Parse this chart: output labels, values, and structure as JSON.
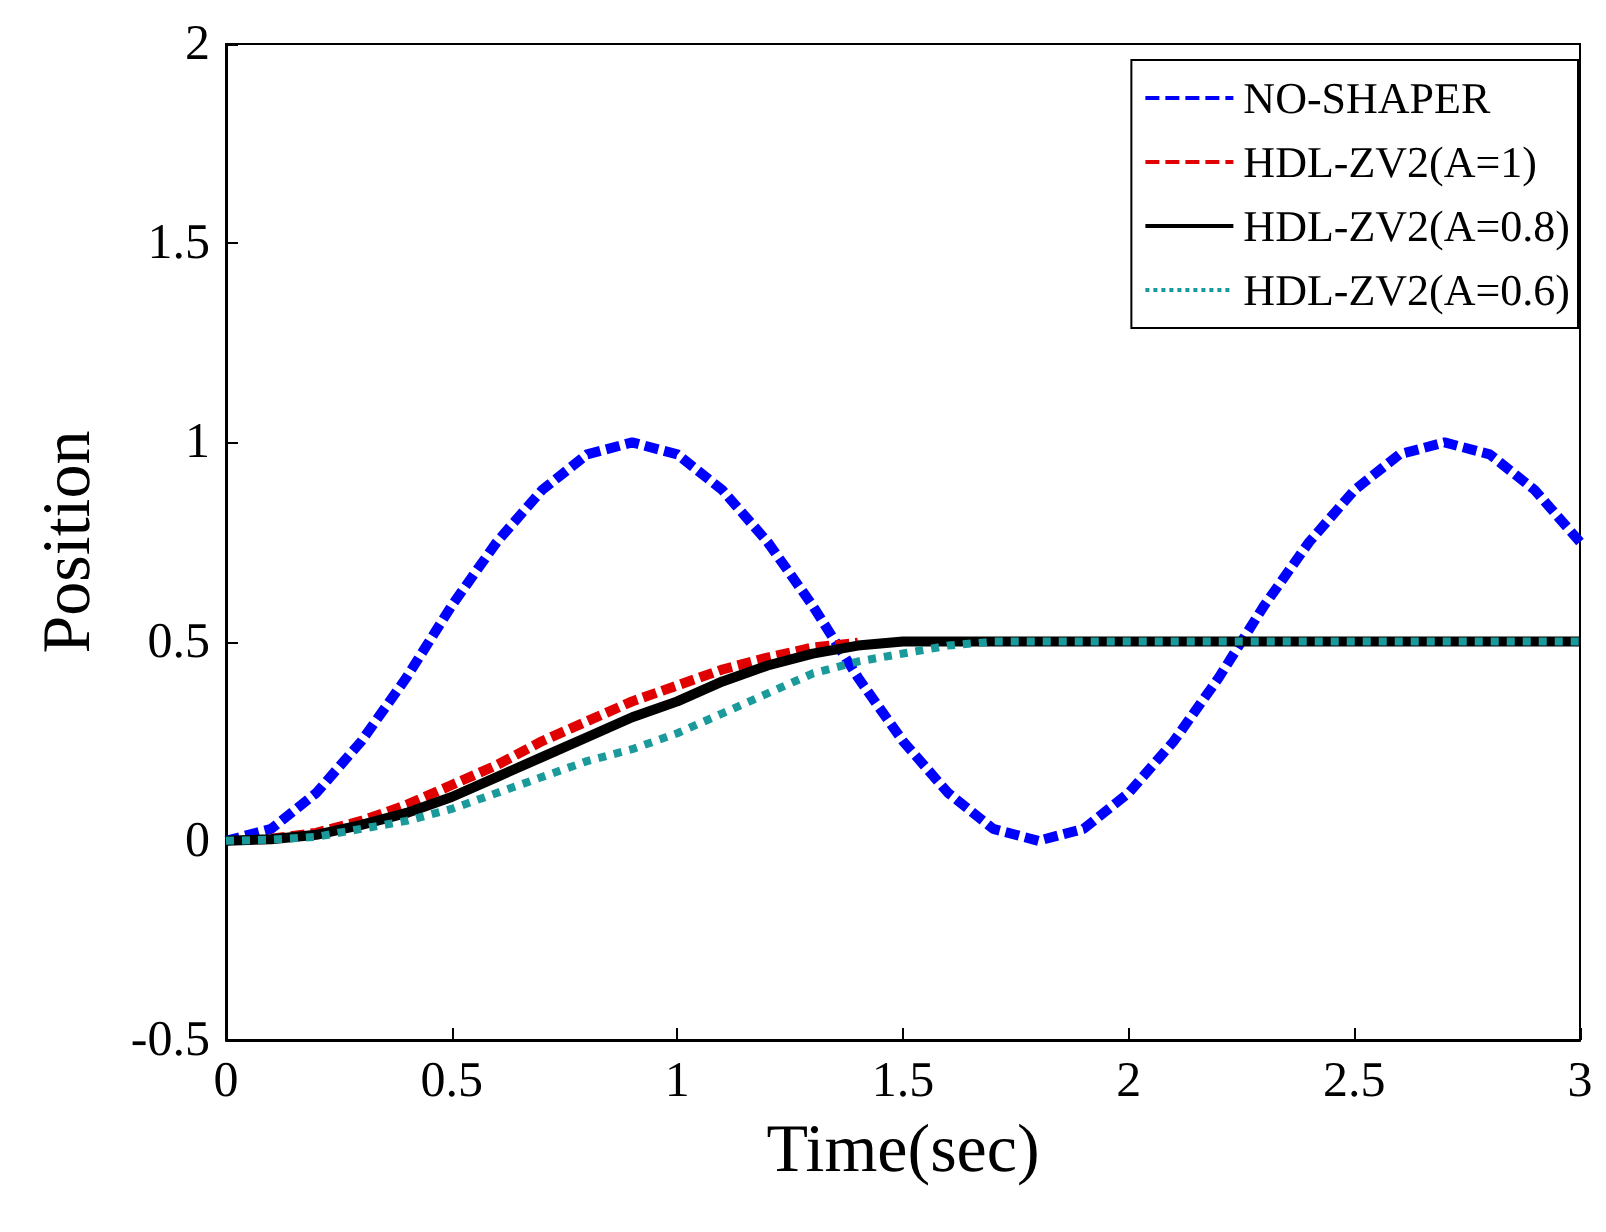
{
  "chart_data": {
    "type": "line",
    "xlabel": "Time(sec)",
    "ylabel": "Position",
    "x": [
      0,
      0.1,
      0.2,
      0.3,
      0.4,
      0.5,
      0.6,
      0.7,
      0.8,
      0.9,
      1,
      1.1,
      1.2,
      1.3,
      1.4,
      1.5,
      1.6,
      1.7,
      1.8,
      1.9,
      2,
      2.1,
      2.2,
      2.3,
      2.4,
      2.5,
      2.6,
      2.7,
      2.8,
      2.9,
      3
    ],
    "series": [
      {
        "name": "NO-SHAPER",
        "color": "#0000ff",
        "line_style": "dashed",
        "values": [
          0,
          0.03,
          0.12,
          0.25,
          0.41,
          0.59,
          0.75,
          0.88,
          0.97,
          1,
          0.97,
          0.88,
          0.75,
          0.59,
          0.41,
          0.25,
          0.12,
          0.03,
          0,
          0.03,
          0.12,
          0.25,
          0.41,
          0.59,
          0.75,
          0.88,
          0.97,
          1,
          0.97,
          0.88,
          0.75
        ]
      },
      {
        "name": "HDL-ZV2(A=1)",
        "color": "#e00000",
        "line_style": "dashed",
        "values": [
          null,
          0.005,
          0.02,
          0.05,
          0.09,
          0.14,
          0.19,
          0.25,
          0.3,
          0.35,
          0.39,
          0.43,
          0.46,
          0.485,
          0.497,
          null,
          null,
          null,
          null,
          null,
          null,
          null,
          null,
          null,
          null,
          null,
          null,
          null,
          null,
          null,
          null
        ]
      },
      {
        "name": "HDL-ZV2(A=0.8)",
        "color": "#000000",
        "line_style": "solid",
        "values": [
          0,
          0.004,
          0.015,
          0.04,
          0.07,
          0.11,
          0.16,
          0.21,
          0.26,
          0.31,
          0.35,
          0.4,
          0.44,
          0.47,
          0.49,
          0.5,
          0.5,
          0.5,
          0.5,
          0.5,
          0.5,
          0.5,
          0.5,
          0.5,
          0.5,
          0.5,
          0.5,
          0.5,
          0.5,
          0.5,
          0.5
        ]
      },
      {
        "name": "HDL-ZV2(A=0.6)",
        "color": "#1a9a9a",
        "line_style": "dotted",
        "values": [
          0,
          0.003,
          0.01,
          0.03,
          0.05,
          0.08,
          0.12,
          0.16,
          0.2,
          0.23,
          0.27,
          0.32,
          0.37,
          0.42,
          0.45,
          0.47,
          0.49,
          0.5,
          0.5,
          0.5,
          0.5,
          0.5,
          0.5,
          0.5,
          0.5,
          0.5,
          0.5,
          0.5,
          0.5,
          0.5,
          0.5
        ]
      }
    ],
    "xlim": [
      0,
      3
    ],
    "xticks": [
      0,
      0.5,
      1,
      1.5,
      2,
      2.5,
      3
    ],
    "ylim": [
      -0.5,
      2
    ],
    "yticks": [
      -0.5,
      0,
      0.5,
      1,
      1.5,
      2
    ],
    "grid": false,
    "legend": "top right",
    "marker": "none"
  }
}
